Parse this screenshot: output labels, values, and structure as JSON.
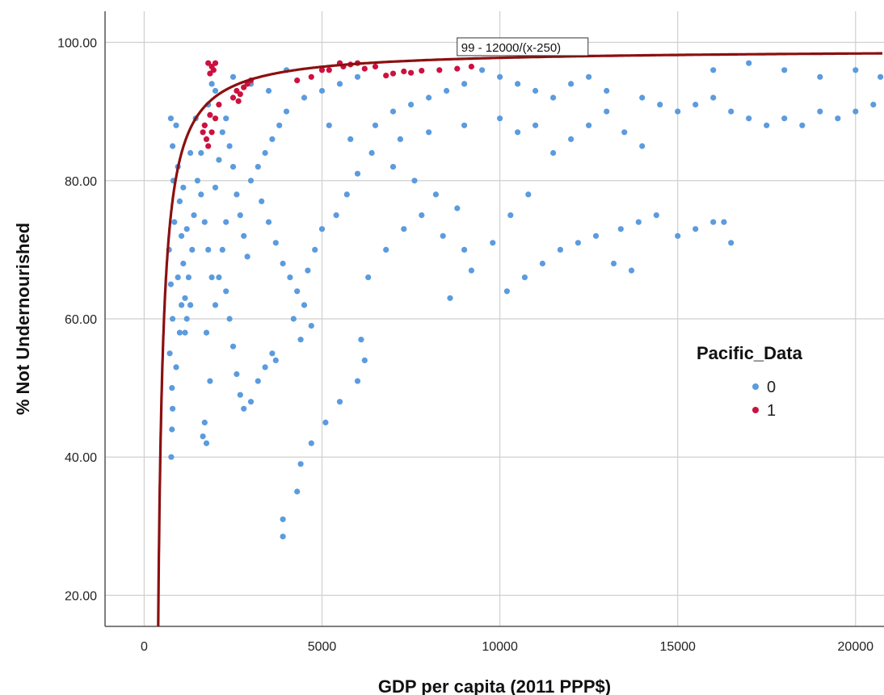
{
  "chart_data": {
    "type": "scatter",
    "title": "",
    "xlabel": "GDP per capita (2011 PPP$)",
    "ylabel": "% Not Undernourished",
    "xlim": [
      -1100,
      20800
    ],
    "ylim": [
      15.5,
      104.5
    ],
    "x_ticks": [
      0,
      5000,
      10000,
      15000,
      20000
    ],
    "x_tick_labels": [
      "0",
      "5000",
      "10000",
      "15000",
      "20000"
    ],
    "y_ticks": [
      20,
      40,
      60,
      80,
      100
    ],
    "y_tick_labels": [
      "20.00",
      "40.00",
      "60.00",
      "80.00",
      "100.00"
    ],
    "grid": true,
    "legend": {
      "title": "Pacific_Data",
      "placement": "right",
      "entries": [
        {
          "label": "0",
          "color": "#5b9bdf"
        },
        {
          "label": "1",
          "color": "#cc1140"
        }
      ]
    },
    "fit_line": {
      "label": "99 - 12000/(x-250)",
      "color": "#8b1010",
      "a": 99,
      "b": 12000,
      "c": 250
    },
    "series": [
      {
        "name": "0",
        "color": "#5b9bdf",
        "points": [
          [
            750,
            89
          ],
          [
            800,
            85
          ],
          [
            820,
            80
          ],
          [
            850,
            74
          ],
          [
            700,
            70
          ],
          [
            750,
            65
          ],
          [
            800,
            60
          ],
          [
            720,
            55
          ],
          [
            780,
            50
          ],
          [
            800,
            47
          ],
          [
            780,
            44
          ],
          [
            760,
            40
          ],
          [
            900,
            88
          ],
          [
            950,
            82
          ],
          [
            1000,
            77
          ],
          [
            1050,
            72
          ],
          [
            1100,
            68
          ],
          [
            1150,
            63
          ],
          [
            1200,
            60
          ],
          [
            1000,
            58
          ],
          [
            1300,
            62
          ],
          [
            1250,
            66
          ],
          [
            1350,
            70
          ],
          [
            1400,
            75
          ],
          [
            1500,
            80
          ],
          [
            1600,
            84
          ],
          [
            1700,
            88
          ],
          [
            1800,
            91
          ],
          [
            1900,
            94
          ],
          [
            1600,
            78
          ],
          [
            1700,
            74
          ],
          [
            1800,
            70
          ],
          [
            1900,
            66
          ],
          [
            2000,
            62
          ],
          [
            1750,
            58
          ],
          [
            1850,
            51
          ],
          [
            1700,
            45
          ],
          [
            1650,
            43
          ],
          [
            1750,
            42
          ],
          [
            2000,
            79
          ],
          [
            2100,
            83
          ],
          [
            2200,
            87
          ],
          [
            2300,
            89
          ],
          [
            2400,
            85
          ],
          [
            2500,
            82
          ],
          [
            2600,
            78
          ],
          [
            2700,
            75
          ],
          [
            2800,
            72
          ],
          [
            2900,
            69
          ],
          [
            2300,
            64
          ],
          [
            2400,
            60
          ],
          [
            2500,
            56
          ],
          [
            2600,
            52
          ],
          [
            2700,
            49
          ],
          [
            2800,
            47
          ],
          [
            3000,
            48
          ],
          [
            3200,
            51
          ],
          [
            3400,
            53
          ],
          [
            3600,
            55
          ],
          [
            3700,
            54
          ],
          [
            3000,
            80
          ],
          [
            3200,
            82
          ],
          [
            3400,
            84
          ],
          [
            3600,
            86
          ],
          [
            3800,
            88
          ],
          [
            4000,
            90
          ],
          [
            3300,
            77
          ],
          [
            3500,
            74
          ],
          [
            3700,
            71
          ],
          [
            3900,
            68
          ],
          [
            4100,
            66
          ],
          [
            4300,
            64
          ],
          [
            4500,
            62
          ],
          [
            4700,
            59
          ],
          [
            4400,
            39
          ],
          [
            4300,
            35
          ],
          [
            3900,
            31
          ],
          [
            3900,
            28.5
          ],
          [
            4700,
            42
          ],
          [
            5100,
            45
          ],
          [
            5500,
            48
          ],
          [
            6000,
            51
          ],
          [
            6200,
            54
          ],
          [
            6100,
            57
          ],
          [
            5000,
            93
          ],
          [
            5500,
            94
          ],
          [
            6000,
            95
          ],
          [
            4500,
            92
          ],
          [
            5200,
            88
          ],
          [
            5800,
            86
          ],
          [
            6400,
            84
          ],
          [
            7000,
            82
          ],
          [
            7600,
            80
          ],
          [
            8200,
            78
          ],
          [
            8800,
            76
          ],
          [
            6300,
            66
          ],
          [
            6800,
            70
          ],
          [
            7300,
            73
          ],
          [
            7800,
            75
          ],
          [
            8400,
            72
          ],
          [
            9000,
            70
          ],
          [
            8600,
            63
          ],
          [
            9200,
            67
          ],
          [
            9800,
            71
          ],
          [
            10300,
            75
          ],
          [
            10800,
            78
          ],
          [
            9500,
            96
          ],
          [
            10000,
            95
          ],
          [
            10500,
            94
          ],
          [
            11000,
            93
          ],
          [
            11500,
            92
          ],
          [
            12000,
            94
          ],
          [
            12500,
            95
          ],
          [
            13000,
            93
          ],
          [
            10200,
            64
          ],
          [
            10700,
            66
          ],
          [
            11200,
            68
          ],
          [
            11700,
            70
          ],
          [
            12200,
            71
          ],
          [
            12700,
            72
          ],
          [
            13200,
            68
          ],
          [
            13700,
            67
          ],
          [
            13400,
            73
          ],
          [
            13900,
            74
          ],
          [
            14400,
            75
          ],
          [
            15000,
            72
          ],
          [
            15500,
            73
          ],
          [
            16000,
            74
          ],
          [
            16300,
            74
          ],
          [
            16500,
            71
          ],
          [
            14000,
            92
          ],
          [
            14500,
            91
          ],
          [
            15000,
            90
          ],
          [
            15500,
            91
          ],
          [
            16000,
            92
          ],
          [
            16500,
            90
          ],
          [
            17000,
            89
          ],
          [
            17500,
            88
          ],
          [
            18000,
            89
          ],
          [
            18500,
            88
          ],
          [
            19000,
            90
          ],
          [
            19500,
            89
          ],
          [
            20000,
            90
          ],
          [
            20500,
            91
          ],
          [
            16000,
            96
          ],
          [
            17000,
            97
          ],
          [
            18000,
            96
          ],
          [
            19000,
            95
          ],
          [
            20000,
            96
          ],
          [
            20700,
            95
          ],
          [
            11500,
            84
          ],
          [
            12000,
            86
          ],
          [
            12500,
            88
          ],
          [
            13000,
            90
          ],
          [
            13500,
            87
          ],
          [
            14000,
            85
          ],
          [
            6500,
            88
          ],
          [
            7000,
            90
          ],
          [
            7500,
            91
          ],
          [
            8000,
            92
          ],
          [
            8500,
            93
          ],
          [
            9000,
            94
          ],
          [
            3000,
            94
          ],
          [
            3500,
            93
          ],
          [
            4000,
            96
          ],
          [
            2500,
            95
          ],
          [
            2000,
            93
          ],
          [
            1200,
            73
          ],
          [
            1100,
            79
          ],
          [
            1300,
            84
          ],
          [
            1450,
            89
          ],
          [
            950,
            66
          ],
          [
            1050,
            62
          ],
          [
            1150,
            58
          ],
          [
            900,
            53
          ],
          [
            2200,
            70
          ],
          [
            2300,
            74
          ],
          [
            2100,
            66
          ],
          [
            5400,
            75
          ],
          [
            5700,
            78
          ],
          [
            6000,
            81
          ],
          [
            4800,
            70
          ],
          [
            5000,
            73
          ],
          [
            4600,
            67
          ],
          [
            4200,
            60
          ],
          [
            4400,
            57
          ],
          [
            7200,
            86
          ],
          [
            8000,
            87
          ],
          [
            9000,
            88
          ],
          [
            10000,
            89
          ],
          [
            10500,
            87
          ],
          [
            11000,
            88
          ]
        ]
      },
      {
        "name": "1",
        "color": "#cc1140",
        "points": [
          [
            1800,
            97
          ],
          [
            1900,
            96.5
          ],
          [
            2000,
            97
          ],
          [
            1850,
            95.5
          ],
          [
            1950,
            96
          ],
          [
            1700,
            88
          ],
          [
            1750,
            86
          ],
          [
            1800,
            85
          ],
          [
            1900,
            87
          ],
          [
            2000,
            89
          ],
          [
            1650,
            87
          ],
          [
            1850,
            89.5
          ],
          [
            2100,
            91
          ],
          [
            2500,
            92
          ],
          [
            2600,
            93
          ],
          [
            2700,
            92.5
          ],
          [
            2800,
            93.5
          ],
          [
            2900,
            94
          ],
          [
            2650,
            91.5
          ],
          [
            3000,
            94.5
          ],
          [
            4300,
            94.5
          ],
          [
            4700,
            95
          ],
          [
            5000,
            96
          ],
          [
            5200,
            96
          ],
          [
            5500,
            97
          ],
          [
            5600,
            96.5
          ],
          [
            5800,
            96.8
          ],
          [
            6000,
            97
          ],
          [
            6200,
            96.2
          ],
          [
            6500,
            96.5
          ],
          [
            6800,
            95.2
          ],
          [
            7000,
            95.5
          ],
          [
            7300,
            95.8
          ],
          [
            7500,
            95.6
          ],
          [
            7800,
            95.9
          ],
          [
            8300,
            96
          ],
          [
            8800,
            96.2
          ],
          [
            9200,
            96.5
          ]
        ]
      }
    ]
  }
}
